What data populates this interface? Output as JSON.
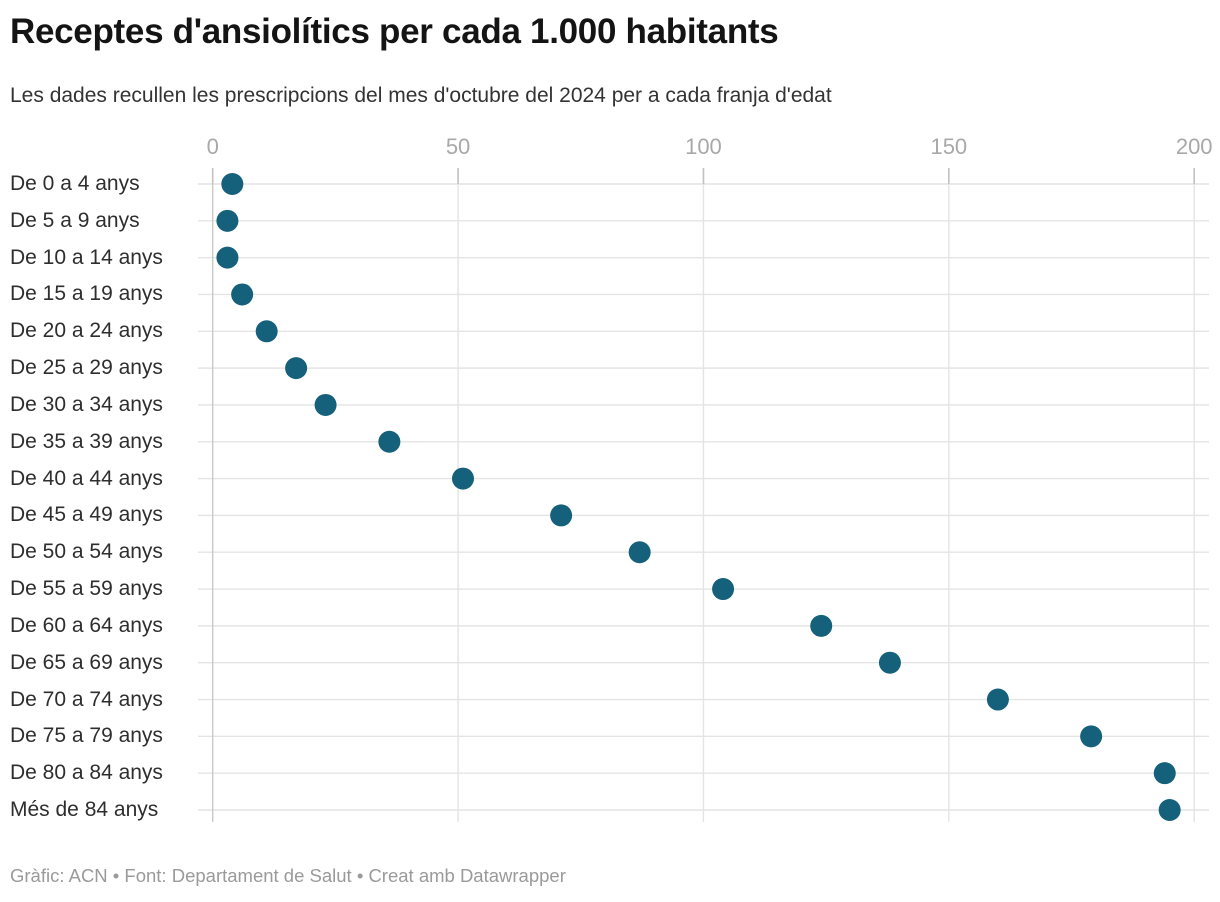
{
  "header": {
    "title": "Receptes d'ansiolítics per cada 1.000 habitants",
    "subtitle": "Les dades recullen les prescripcions del mes d'octubre del 2024 per a cada franja d'edat"
  },
  "footer": {
    "text": "Gràfic: ACN • Font: Departament de Salut • Creat amb Datawrapper"
  },
  "colors": {
    "dot": "#15607a",
    "gridline": "#e4e4e4",
    "axis_line": "#c9c9c9",
    "tick": "#c2c2c2",
    "axis_label": "#a8a8a8",
    "category_label": "#2e2e2e",
    "title": "#141414",
    "subtitle": "#333333",
    "footer": "#9a9a9a"
  },
  "chart_data": {
    "type": "scatter",
    "variant": "horizontal-dot-plot",
    "title": "Receptes d'ansiolítics per cada 1.000 habitants",
    "subtitle": "Les dades recullen les prescripcions del mes d'octubre del 2024 per a cada franja d'edat",
    "categories": [
      "De 0 a 4 anys",
      "De 5 a 9 anys",
      "De 10 a 14 anys",
      "De 15 a 19 anys",
      "De 20 a 24 anys",
      "De 25 a 29 anys",
      "De 30 a 34 anys",
      "De 35 a 39 anys",
      "De 40 a 44 anys",
      "De 45 a 49 anys",
      "De 50 a 54 anys",
      "De 55 a 59 anys",
      "De 60 a 64 anys",
      "De 65 a 69 anys",
      "De 70 a 74 anys",
      "De 75 a 79 anys",
      "De 80 a 84 anys",
      "Més de 84 anys"
    ],
    "values": [
      4,
      3,
      3,
      6,
      11,
      17,
      23,
      36,
      51,
      71,
      87,
      104,
      124,
      138,
      160,
      179,
      194,
      195
    ],
    "xlabel": "",
    "ylabel": "",
    "xlim": [
      0,
      200
    ],
    "x_ticks": [
      0,
      50,
      100,
      150,
      200
    ],
    "grid": true,
    "legend": "none",
    "dot_color": "#15607a"
  }
}
